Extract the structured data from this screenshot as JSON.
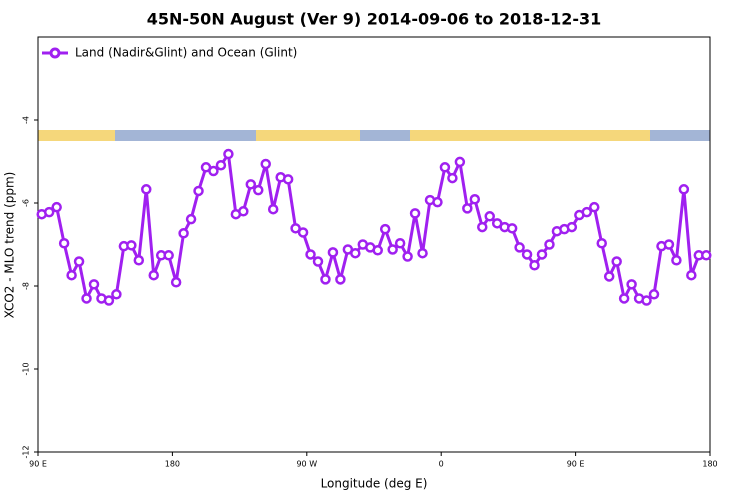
{
  "chart_data": {
    "type": "line",
    "title": "45N-50N August (Ver 9)   2014-09-06 to 2018-12-31",
    "x_label": "Longitude (deg E)",
    "y_label": "XCO2 - MLO trend (ppm)",
    "xlim": [
      90,
      540
    ],
    "ylim": [
      -12,
      -2
    ],
    "xticks": [
      {
        "value": 90,
        "label": "90 E"
      },
      180,
      {
        "value": 270,
        "label": "90 W"
      },
      {
        "value": 360,
        "label": "0"
      },
      {
        "value": 450,
        "label": "90 E"
      },
      {
        "value": 540,
        "label": "180"
      }
    ],
    "yticks": [
      -12,
      -10,
      -8,
      -6,
      -4
    ],
    "legend": "top-left",
    "x": [
      92.5,
      97.5,
      102.5,
      107.5,
      112.5,
      117.5,
      122.5,
      127.5,
      132.5,
      137.5,
      142.5,
      147.5,
      152.5,
      157.5,
      162.5,
      167.5,
      172.5,
      177.5,
      182.5,
      187.5,
      192.5,
      197.5,
      202.5,
      207.5,
      212.5,
      217.5,
      222.5,
      227.5,
      232.5,
      237.5,
      242.5,
      247.5,
      252.5,
      257.5,
      262.5,
      267.5,
      272.5,
      277.5,
      282.5,
      287.5,
      292.5,
      297.5,
      302.5,
      307.5,
      312.5,
      317.5,
      322.5,
      327.5,
      332.5,
      337.5,
      342.5,
      347.5,
      352.5,
      357.5,
      362.5,
      367.5,
      372.5,
      377.5,
      382.5,
      387.5,
      392.5,
      397.5,
      402.5,
      407.5,
      412.5,
      417.5,
      422.5,
      427.5,
      432.5,
      437.5,
      442.5,
      447.5,
      452.5,
      457.5,
      462.5,
      467.5,
      472.5,
      477.5,
      482.5,
      487.5,
      492.5,
      497.5,
      502.5,
      507.5,
      512.5,
      517.5,
      522.5,
      527.5,
      532.5,
      537.5
    ],
    "series": [
      {
        "name": "Land (Nadir&Glint) and Ocean (Glint)",
        "color": "#a020f0",
        "values": [
          -6.27,
          -6.22,
          -6.1,
          -6.97,
          -7.74,
          -7.41,
          -8.3,
          -7.96,
          -8.3,
          -8.35,
          -8.2,
          -7.04,
          -7.02,
          -7.38,
          -5.67,
          -7.74,
          -7.26,
          -7.26,
          -7.91,
          -6.73,
          -6.39,
          -5.71,
          -5.14,
          -5.23,
          -5.09,
          -4.82,
          -6.27,
          -6.2,
          -5.55,
          -5.69,
          -5.06,
          -6.15,
          -5.38,
          -5.43,
          -6.61,
          -6.71,
          -7.24,
          -7.41,
          -7.84,
          -7.19,
          -7.84,
          -7.12,
          -7.21,
          -7.0,
          -7.07,
          -7.14,
          -6.63,
          -7.12,
          -6.97,
          -7.29,
          -6.25,
          -7.21,
          -5.93,
          -5.98,
          -5.14,
          -5.4,
          -5.01,
          -6.13,
          -5.91,
          -6.58,
          -6.32,
          -6.49,
          -6.58,
          -6.61,
          -7.07,
          -7.24,
          -7.5,
          -7.24,
          -7.0,
          -6.68,
          -6.63,
          -6.58,
          -6.29,
          -6.22,
          -6.1,
          -6.97,
          -7.77,
          -7.41,
          -8.3,
          -7.96,
          -8.3,
          -8.35,
          -8.2,
          -7.04,
          -7.0,
          -7.38,
          -5.67,
          -7.74,
          -7.26,
          -7.26
        ]
      }
    ]
  }
}
